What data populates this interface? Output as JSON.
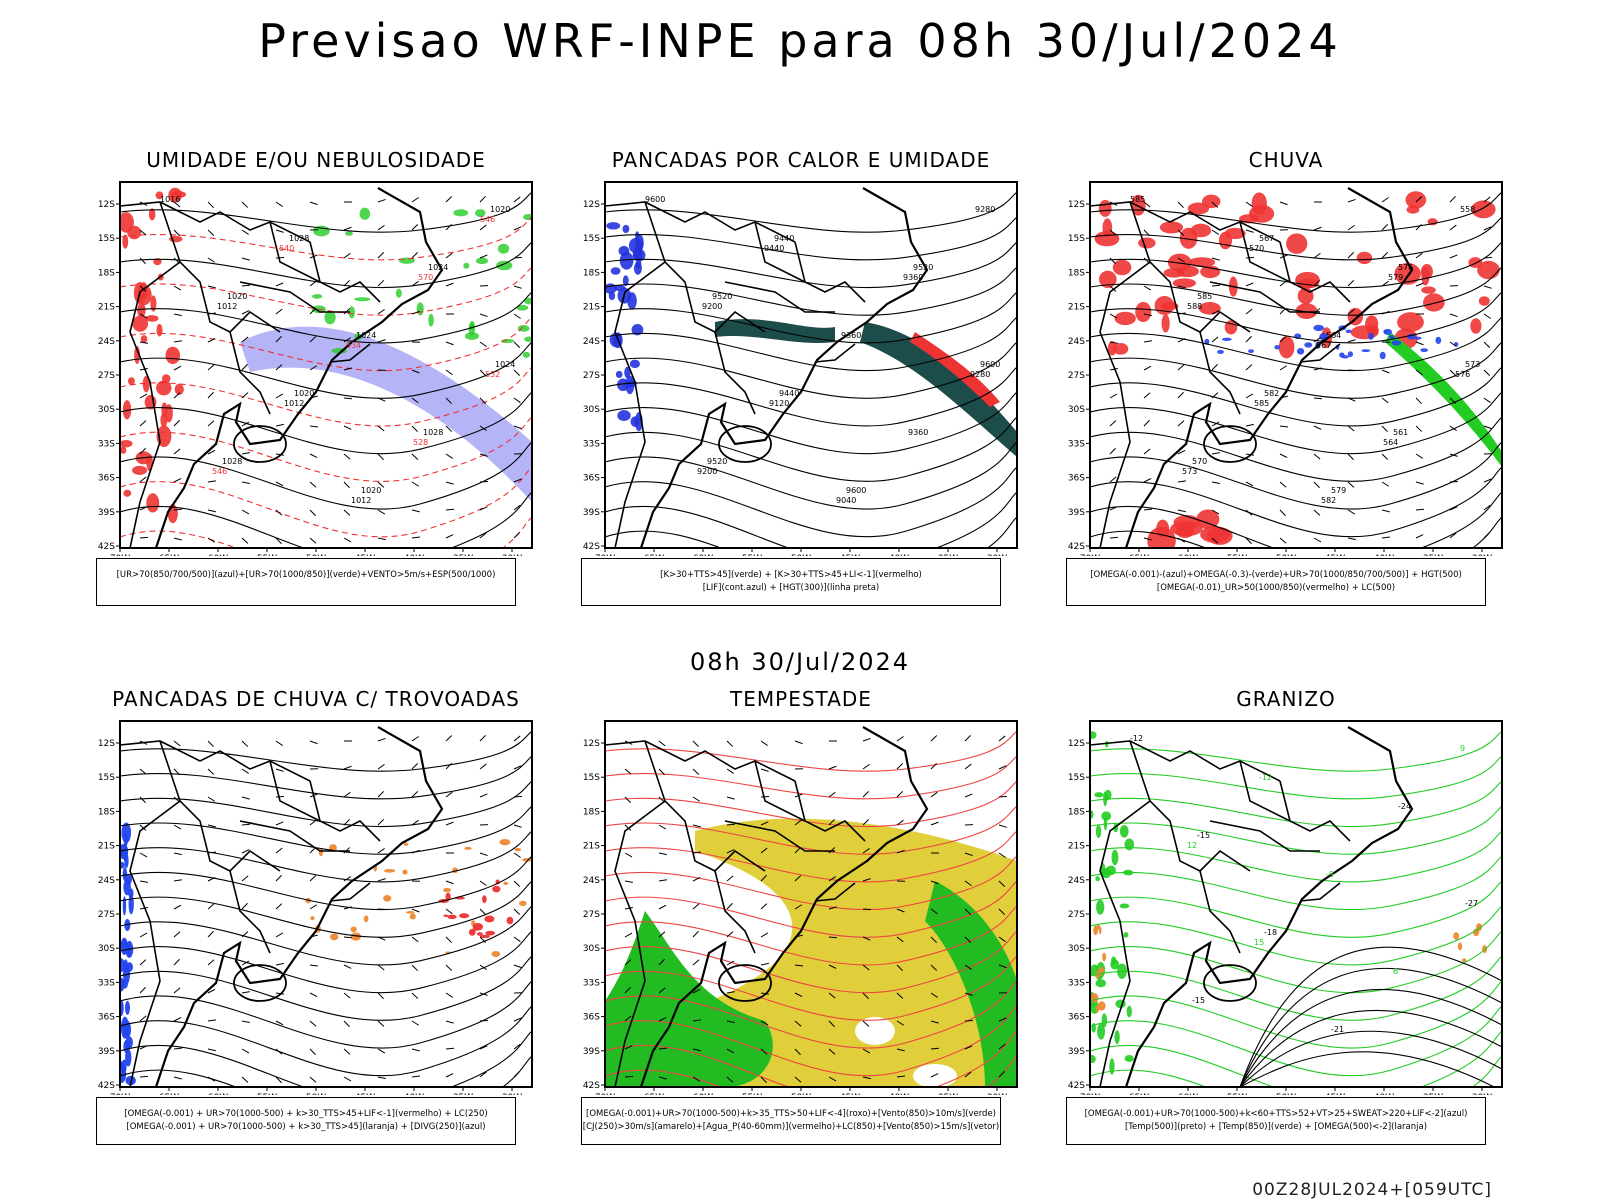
{
  "header": {
    "title": "Previsao WRF-INPE  para 08h 30/Jul/2024"
  },
  "mid_title": "08h 30/Jul/2024",
  "footer": "00Z28JUL2024+[059UTC]",
  "axes": {
    "lat_labels": [
      "12S",
      "15S",
      "18S",
      "21S",
      "24S",
      "27S",
      "30S",
      "33S",
      "36S",
      "39S",
      "42S"
    ],
    "lon_labels": [
      "70W",
      "65W",
      "60W",
      "55W",
      "50W",
      "45W",
      "40W",
      "35W",
      "30W"
    ]
  },
  "panels": [
    {
      "id": "umidade",
      "title": "UMIDADE E/OU NEBULOSIDADE",
      "legend_line1": "[UR>70(850/700/500)](azul)+[UR>70(1000/850)](verde)+VENTO>5m/s+ESP(500/1000)",
      "legend_line2": "",
      "contour_labels": [
        "1016",
        "1020",
        "1020",
        "1020",
        "1024",
        "1024",
        "1028",
        "1028",
        "1024",
        "1028",
        "1020",
        "1012",
        "1012",
        "1012",
        "570",
        "552",
        "546",
        "540",
        "534",
        "528",
        "546"
      ],
      "colors": {
        "blue": "#9b9bf4",
        "green": "#22cc22",
        "red": "#ee3333"
      }
    },
    {
      "id": "pancadas_calor",
      "title": "PANCADAS POR CALOR E UMIDADE",
      "legend_line1": "[K>30+TTS>45](verde) + [K>30+TTS>45+LI<-1](vermelho)",
      "legend_line2": "[LIF](cont.azul) + [HGT(300)](linha preta)",
      "contour_labels": [
        "9600",
        "9520",
        "9440",
        "9600",
        "9520",
        "9600",
        "9520",
        "9440",
        "9360",
        "9360",
        "9280",
        "9200",
        "9120",
        "9040",
        "9360",
        "9280",
        "9200",
        "9440"
      ],
      "colors": {
        "dark": "#1d4d4a",
        "red": "#ee3333",
        "blue": "#2233dd"
      }
    },
    {
      "id": "chuva",
      "title": "CHUVA",
      "legend_line1": "[OMEGA(-0.001)-(azul)+OMEGA(-0.3)-(verde)+UR>70(1000/850/700/500)] + HGT(500)",
      "legend_line2": "[OMEGA(-0.01)_UR>50(1000/850)(vermelho) + LC(500)",
      "contour_labels": [
        "585",
        "585",
        "582",
        "579",
        "576",
        "573",
        "570",
        "567",
        "564",
        "561",
        "558",
        "588",
        "585",
        "582",
        "579",
        "576",
        "573",
        "570",
        "567",
        "564"
      ],
      "colors": {
        "red": "#ee3333",
        "green": "#22cc22",
        "blue": "#2244ee"
      }
    },
    {
      "id": "trovoadas",
      "title": "PANCADAS DE CHUVA C/ TROVOADAS",
      "legend_line1": "[OMEGA(-0.001) + UR>70(1000-500) + k>30_TTS>45+LIF<-1](vermelho) + LC(250)",
      "legend_line2": "[OMEGA(-0.001) + UR>70(1000-500) + k>30_TTS>45](laranja) + [DIVG(250)](azul)",
      "contour_labels": [],
      "colors": {
        "blue": "#2244ee",
        "orange": "#ee8833",
        "red": "#ee3333"
      }
    },
    {
      "id": "tempestade",
      "title": "TEMPESTADE",
      "legend_line1": "[OMEGA(-0.001)+UR>70(1000-500)+k>35_TTS>50+LIF<-4](roxo)+[Vento(850)>10m/s](verde)",
      "legend_line2": "[CJ(250)>30m/s](amarelo)+[Agua_P(40-60mm)](vermelho)+LC(850)+[Vento(850)>15m/s](vetor)",
      "contour_labels": [],
      "colors": {
        "yellow": "#e0cf3a",
        "green": "#22bb22",
        "red": "#ee4444"
      }
    },
    {
      "id": "granizo",
      "title": "GRANIZO",
      "legend_line1": "[OMEGA(-0.001)+UR>70(1000-500)+k<60+TTS>52+VT>25+SWEAT>220+LIF<-2](azul)",
      "legend_line2": "[Temp(500)](preto) + [Temp(850)](verde) + [OMEGA(500)<-2](laranja)",
      "contour_labels": [
        "-12",
        "-15",
        "-18",
        "-21",
        "-24",
        "-27",
        "-15",
        "-12",
        "-9",
        "6",
        "9",
        "12",
        "15"
      ],
      "colors": {
        "green": "#22cc22",
        "orange": "#ee8833"
      }
    }
  ]
}
